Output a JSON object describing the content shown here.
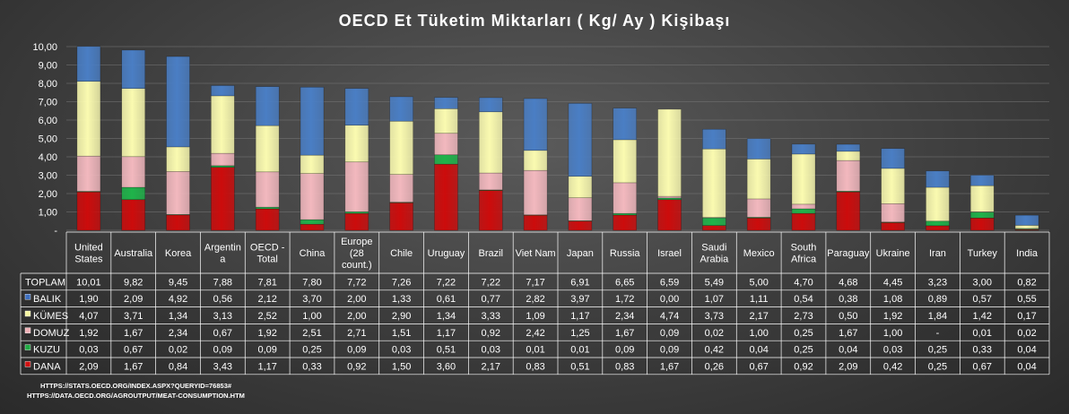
{
  "chart_data": {
    "type": "bar",
    "stacked": true,
    "title": "OECD  Et  Tüketim  Miktarları  ( Kg/  Ay ) Kişibaşı",
    "ylim": [
      0,
      10
    ],
    "yticks": [
      "-",
      "1,00",
      "2,00",
      "3,00",
      "4,00",
      "5,00",
      "6,00",
      "7,00",
      "8,00",
      "9,00",
      "10,00"
    ],
    "grid": true,
    "legend": "table-bottom",
    "categories": [
      [
        "United",
        "States"
      ],
      [
        "Australia"
      ],
      [
        "Korea"
      ],
      [
        "Argentin",
        "a"
      ],
      [
        "OECD -",
        "Total"
      ],
      [
        "China"
      ],
      [
        "Europe",
        "(28",
        "count.)"
      ],
      [
        "Chile"
      ],
      [
        "Uruguay"
      ],
      [
        "Brazil"
      ],
      [
        "Viet Nam"
      ],
      [
        "Japan"
      ],
      [
        "Russia"
      ],
      [
        "Israel"
      ],
      [
        "Saudi",
        "Arabia"
      ],
      [
        "Mexico"
      ],
      [
        "South",
        "Africa"
      ],
      [
        "Paraguay"
      ],
      [
        "Ukraine"
      ],
      [
        "Iran"
      ],
      [
        "Turkey"
      ],
      [
        "India"
      ]
    ],
    "total": {
      "name": "TOPLAM",
      "values": [
        10.01,
        9.82,
        9.45,
        7.88,
        7.81,
        7.8,
        7.72,
        7.26,
        7.22,
        7.22,
        7.17,
        6.91,
        6.65,
        6.59,
        5.49,
        5.0,
        4.7,
        4.68,
        4.45,
        3.23,
        3.0,
        0.82
      ],
      "labels": [
        "10,01",
        "9,82",
        "9,45",
        "7,88",
        "7,81",
        "7,80",
        "7,72",
        "7,26",
        "7,22",
        "7,22",
        "7,17",
        "6,91",
        "6,65",
        "6,59",
        "5,49",
        "5,00",
        "4,70",
        "4,68",
        "4,45",
        "3,23",
        "3,00",
        "0,82"
      ]
    },
    "series": [
      {
        "name": "BALIK",
        "color": "#4a7ec4",
        "marker": "#3d6fbf",
        "values": [
          1.9,
          2.09,
          4.92,
          0.56,
          2.12,
          3.7,
          2.0,
          1.33,
          0.61,
          0.77,
          2.82,
          3.97,
          1.72,
          0.0,
          1.07,
          1.11,
          0.54,
          0.38,
          1.08,
          0.89,
          0.57,
          0.55
        ],
        "labels": [
          "1,90",
          "2,09",
          "4,92",
          "0,56",
          "2,12",
          "3,70",
          "2,00",
          "1,33",
          "0,61",
          "0,77",
          "2,82",
          "3,97",
          "1,72",
          "0,00",
          "1,07",
          "1,11",
          "0,54",
          "0,38",
          "1,08",
          "0,89",
          "0,57",
          "0,55"
        ]
      },
      {
        "name": "KÜMES",
        "color": "#fafab0",
        "marker": "#f5f5a0",
        "values": [
          4.07,
          3.71,
          1.34,
          3.13,
          2.52,
          1.0,
          2.0,
          2.9,
          1.34,
          3.33,
          1.09,
          1.17,
          2.34,
          4.74,
          3.73,
          2.17,
          2.73,
          0.5,
          1.92,
          1.84,
          1.42,
          0.17
        ],
        "labels": [
          "4,07",
          "3,71",
          "1,34",
          "3,13",
          "2,52",
          "1,00",
          "2,00",
          "2,90",
          "1,34",
          "3,33",
          "1,09",
          "1,17",
          "2,34",
          "4,74",
          "3,73",
          "2,17",
          "2,73",
          "0,50",
          "1,92",
          "1,84",
          "1,42",
          "0,17"
        ]
      },
      {
        "name": "DOMUZ",
        "color": "#f2b8be",
        "marker": "#eeb0b6",
        "values": [
          1.92,
          1.67,
          2.34,
          0.67,
          1.92,
          2.51,
          2.71,
          1.51,
          1.17,
          0.92,
          2.42,
          1.25,
          1.67,
          0.09,
          0.02,
          1.0,
          0.25,
          1.67,
          1.0,
          0,
          0.01,
          0.02
        ],
        "labels": [
          "1,92",
          "1,67",
          "2,34",
          "0,67",
          "1,92",
          "2,51",
          "2,71",
          "1,51",
          "1,17",
          "0,92",
          "2,42",
          "1,25",
          "1,67",
          "0,09",
          "0,02",
          "1,00",
          "0,25",
          "1,67",
          "1,00",
          "-",
          "0,01",
          "0,02"
        ]
      },
      {
        "name": "KUZU",
        "color": "#1fb34a",
        "marker": "#1faa44",
        "values": [
          0.03,
          0.67,
          0.02,
          0.09,
          0.09,
          0.25,
          0.09,
          0.03,
          0.51,
          0.03,
          0.01,
          0.01,
          0.09,
          0.09,
          0.42,
          0.04,
          0.25,
          0.04,
          0.03,
          0.25,
          0.33,
          0.04
        ],
        "labels": [
          "0,03",
          "0,67",
          "0,02",
          "0,09",
          "0,09",
          "0,25",
          "0,09",
          "0,03",
          "0,51",
          "0,03",
          "0,01",
          "0,01",
          "0,09",
          "0,09",
          "0,42",
          "0,04",
          "0,25",
          "0,04",
          "0,03",
          "0,25",
          "0,33",
          "0,04"
        ]
      },
      {
        "name": "DANA",
        "color": "#cc0c0c",
        "marker": "#d01010",
        "values": [
          2.09,
          1.67,
          0.84,
          3.43,
          1.17,
          0.33,
          0.92,
          1.5,
          3.6,
          2.17,
          0.83,
          0.51,
          0.83,
          1.67,
          0.26,
          0.67,
          0.92,
          2.09,
          0.42,
          0.25,
          0.67,
          0.04
        ],
        "labels": [
          "2,09",
          "1,67",
          "0,84",
          "3,43",
          "1,17",
          "0,33",
          "0,92",
          "1,50",
          "3,60",
          "2,17",
          "0,83",
          "0,51",
          "0,83",
          "1,67",
          "0,26",
          "0,67",
          "0,92",
          "2,09",
          "0,42",
          "0,25",
          "0,67",
          "0,04"
        ]
      }
    ],
    "stack_order_bottom_to_top": [
      "DANA",
      "KUZU",
      "DOMUZ",
      "KÜMES",
      "BALIK"
    ]
  },
  "sources": [
    "HTTPS://STATS.OECD.ORG/INDEX.ASPX?QUERYID=76853#",
    "HTTPS://DATA.OECD.ORG/AGROUTPUT/MEAT-CONSUMPTION.HTM"
  ]
}
